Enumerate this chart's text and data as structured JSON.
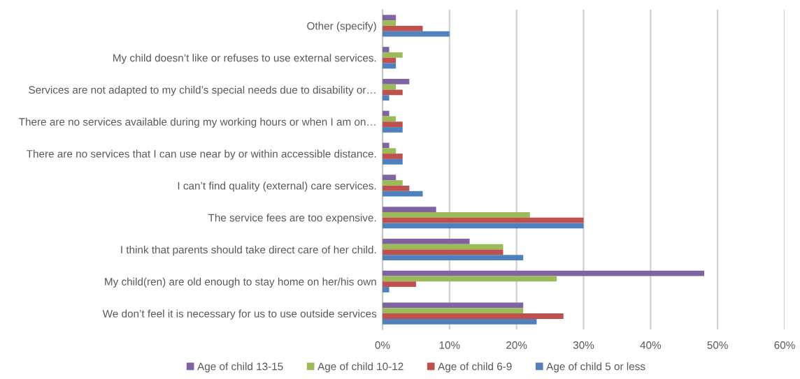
{
  "chart_data": {
    "type": "bar",
    "orientation": "horizontal",
    "categories": [
      "Other (specify)",
      "My child doesn’t like or refuses to use external services.",
      "Services are not adapted to my child’s special needs due to disability or…",
      "There are no services available during my working hours or when I am on…",
      "There are no services that I can use near by or within accessible distance.",
      "I can’t find quality (external) care services.",
      "The service fees are too expensive.",
      "I think that parents should take direct care of her child.",
      "My child(ren) are old enough to stay home on her/his own",
      "We don’t feel it is necessary for us to use outside services"
    ],
    "series": [
      {
        "name": "Age of child 13-15",
        "color": "#8064a2",
        "values": [
          2,
          1,
          4,
          1,
          1,
          2,
          8,
          13,
          48,
          21
        ]
      },
      {
        "name": "Age of child 10-12",
        "color": "#9bbb59",
        "values": [
          2,
          3,
          2,
          2,
          2,
          3,
          22,
          18,
          26,
          21
        ]
      },
      {
        "name": "Age of child 6-9",
        "color": "#c0504d",
        "values": [
          6,
          2,
          3,
          3,
          3,
          4,
          30,
          18,
          5,
          27
        ]
      },
      {
        "name": "Age of child 5 or less",
        "color": "#4f81bd",
        "values": [
          10,
          2,
          1,
          3,
          3,
          6,
          30,
          21,
          1,
          23
        ]
      }
    ],
    "xlim": [
      0,
      60
    ],
    "xticks": [
      {
        "value": 0,
        "label": "0%"
      },
      {
        "value": 10,
        "label": "10%"
      },
      {
        "value": 20,
        "label": "20%"
      },
      {
        "value": 30,
        "label": "30%"
      },
      {
        "value": 40,
        "label": "40%"
      },
      {
        "value": 50,
        "label": "50%"
      },
      {
        "value": 60,
        "label": "60%"
      }
    ],
    "grid": "x",
    "legend": "bottom"
  }
}
